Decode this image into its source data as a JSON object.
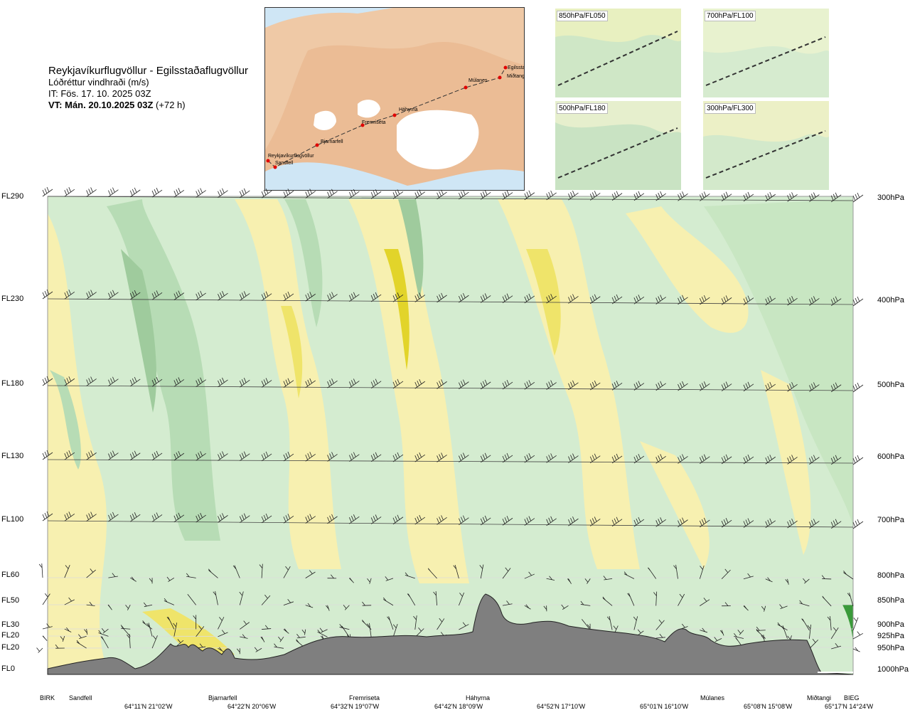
{
  "header": {
    "title": "Reykjavíkurflugvöllur - Egilsstaðaflugvöllur",
    "subtitle": "Lóðréttur vindhraði (m/s)",
    "issue_time": "IT: Fös. 17. 10. 2025 03Z",
    "valid_time_bold": "VT: Mán. 20.10.2025 03Z",
    "valid_time_offset": "(+72 h)"
  },
  "route_map": {
    "waypoints": [
      {
        "name": "Reykjavíkurflugvöllur"
      },
      {
        "name": "Sandfell"
      },
      {
        "name": "Bjarnarfell"
      },
      {
        "name": "Fremriseta"
      },
      {
        "name": "Háhyrna"
      },
      {
        "name": "Múlanes"
      },
      {
        "name": "Miðtangi"
      },
      {
        "name": "Egilsstaðir"
      }
    ]
  },
  "thumbnails": [
    {
      "label": "850hPa/FL050"
    },
    {
      "label": "700hPa/FL100"
    },
    {
      "label": "500hPa/FL180"
    },
    {
      "label": "300hPa/FL300"
    }
  ],
  "axis_left": [
    {
      "label": "FL290"
    },
    {
      "label": "FL230"
    },
    {
      "label": "FL180"
    },
    {
      "label": "FL130"
    },
    {
      "label": "FL100"
    },
    {
      "label": "FL60"
    },
    {
      "label": "FL50"
    },
    {
      "label": "FL30"
    },
    {
      "label": "FL20"
    },
    {
      "label": "FL20"
    },
    {
      "label": "FL0"
    }
  ],
  "axis_right": [
    {
      "label": "300hPa"
    },
    {
      "label": "400hPa"
    },
    {
      "label": "500hPa"
    },
    {
      "label": "600hPa"
    },
    {
      "label": "700hPa"
    },
    {
      "label": "800hPa"
    },
    {
      "label": "850hPa"
    },
    {
      "label": "900hPa"
    },
    {
      "label": "925hPa"
    },
    {
      "label": "950hPa"
    },
    {
      "label": "1000hPa"
    }
  ],
  "stations": [
    {
      "label": "BIRK"
    },
    {
      "label": "Sandfell"
    },
    {
      "label": "Bjarnarfell"
    },
    {
      "label": "Fremriseta"
    },
    {
      "label": "Háhyrna"
    },
    {
      "label": "Múlanes"
    },
    {
      "label": "Miðtangi"
    },
    {
      "label": "BIEG"
    }
  ],
  "coordinates": [
    {
      "label": "64°11'N 21°02'W"
    },
    {
      "label": "64°22'N 20°06'W"
    },
    {
      "label": "64°32'N 19°07'W"
    },
    {
      "label": "64°42'N 18°09'W"
    },
    {
      "label": "64°52'N 17°10'W"
    },
    {
      "label": "65°01'N 16°10'W"
    },
    {
      "label": "65°08'N 15°08'W"
    },
    {
      "label": "65°17'N 14°24'W"
    }
  ],
  "colors": {
    "green_light": "#d4ecd0",
    "green_mid": "#b7dcb5",
    "green_dark": "#9fcb9d",
    "yellow_light": "#f7f0b0",
    "yellow_mid": "#efe46a",
    "yellow_dark": "#e2d42a",
    "terrain": "#7f7f7f",
    "route": "#e00000"
  },
  "chart_data": {
    "type": "heatmap",
    "variable": "vertical wind speed (m/s)",
    "y_levels_hpa": [
      300,
      400,
      500,
      600,
      700,
      800,
      850,
      900,
      925,
      950,
      1000
    ],
    "y_levels_fl": [
      "FL290",
      "FL230",
      "FL180",
      "FL130",
      "FL100",
      "FL60",
      "FL50",
      "FL30",
      "FL20",
      "FL20",
      "FL0"
    ],
    "x_stations": [
      "BIRK",
      "Sandfell",
      "Bjarnarfell",
      "Fremriseta",
      "Háhyrna",
      "Múlanes",
      "Miðtangi",
      "BIEG"
    ],
    "grid": false,
    "legend": "none"
  }
}
